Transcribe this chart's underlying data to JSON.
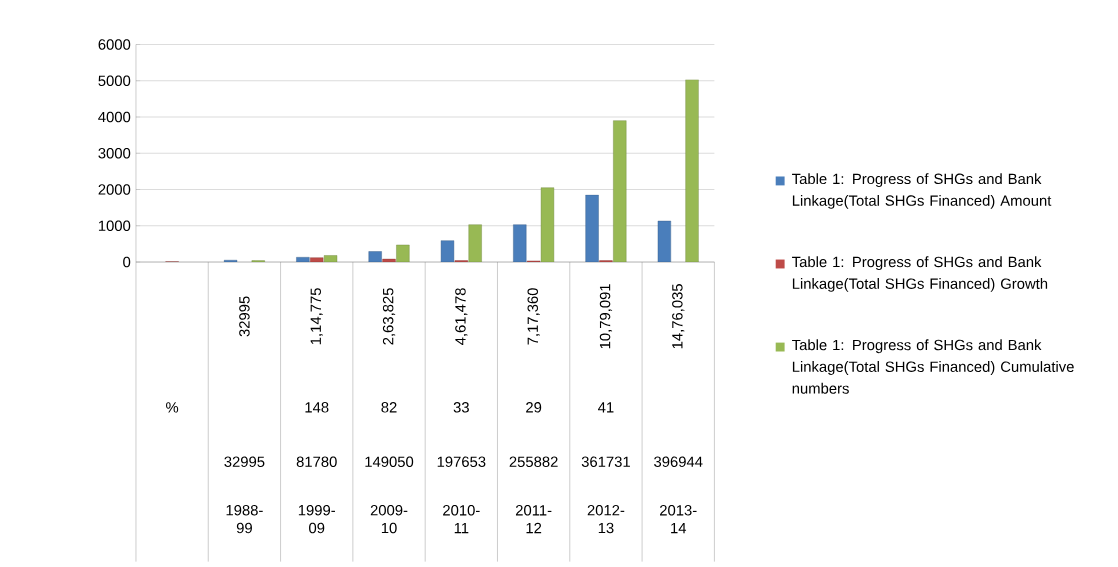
{
  "chart_data": {
    "type": "bar",
    "categories": [
      null,
      null,
      null,
      null,
      null,
      null,
      null,
      null
    ],
    "series": [
      {
        "name": "Table 1: Progress of SHGs and Bank Linkage(Total SHGs Financed)  Amount",
        "color": "#4a7ebb",
        "values": [
          null,
          50,
          130,
          290,
          590,
          1030,
          1850,
          1130
        ]
      },
      {
        "name": "Table 1: Progress of SHGs and Bank Linkage(Total SHGs Financed)  Growth",
        "color": "#be4b48",
        "values": [
          10,
          null,
          120,
          80,
          40,
          30,
          40,
          null
        ]
      },
      {
        "name": "Table 1: Progress of SHGs and Bank Linkage(Total SHGs Financed)  Cumulative numbers",
        "color": "#98b954",
        "values": [
          null,
          40,
          180,
          470,
          1030,
          2050,
          3900,
          5030
        ]
      }
    ],
    "ylim": [
      0,
      6000
    ],
    "yticks": [
      0,
      1000,
      2000,
      3000,
      4000,
      5000,
      6000
    ],
    "grid": "y",
    "legend": "right",
    "annotations": [
      "32995",
      "1,14,775",
      "2,63,825",
      "4,61,478",
      "7,17,360",
      "10,79,091",
      "14,76,035",
      "%",
      "148",
      "82",
      "33",
      "29",
      "41",
      "32995",
      "81780",
      "149050",
      "197653",
      "255882",
      "361731",
      "396944",
      "1988-99",
      "1999-09",
      "2009-10",
      "2010-11",
      "2011-12",
      "2012-13",
      "2013-14"
    ]
  }
}
